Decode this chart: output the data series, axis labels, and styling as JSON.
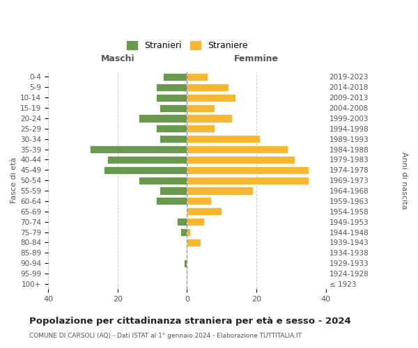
{
  "age_groups": [
    "100+",
    "95-99",
    "90-94",
    "85-89",
    "80-84",
    "75-79",
    "70-74",
    "65-69",
    "60-64",
    "55-59",
    "50-54",
    "45-49",
    "40-44",
    "35-39",
    "30-34",
    "25-29",
    "20-24",
    "15-19",
    "10-14",
    "5-9",
    "0-4"
  ],
  "birth_years": [
    "≤ 1923",
    "1924-1928",
    "1929-1933",
    "1934-1938",
    "1939-1943",
    "1944-1948",
    "1949-1953",
    "1954-1958",
    "1959-1963",
    "1964-1968",
    "1969-1973",
    "1974-1978",
    "1979-1983",
    "1984-1988",
    "1989-1993",
    "1994-1998",
    "1999-2003",
    "2004-2008",
    "2009-2013",
    "2014-2018",
    "2019-2023"
  ],
  "maschi": [
    0,
    0,
    1,
    0,
    0,
    2,
    3,
    0,
    9,
    8,
    14,
    24,
    23,
    28,
    8,
    9,
    14,
    8,
    9,
    9,
    7
  ],
  "femmine": [
    0,
    0,
    0,
    0,
    4,
    1,
    5,
    10,
    7,
    19,
    35,
    35,
    31,
    29,
    21,
    8,
    13,
    8,
    14,
    12,
    6
  ],
  "maschi_color": "#6a994e",
  "femmine_color": "#f7b731",
  "background_color": "#ffffff",
  "grid_color": "#cccccc",
  "title": "Popolazione per cittadinanza straniera per età e sesso - 2024",
  "subtitle": "COMUNE DI CARSOLI (AQ) - Dati ISTAT al 1° gennaio 2024 - Elaborazione TUTTITALIA.IT",
  "xlabel_left": "Maschi",
  "xlabel_right": "Femmine",
  "ylabel_left": "Fasce di età",
  "ylabel_right": "Anni di nascita",
  "legend_stranieri": "Stranieri",
  "legend_straniere": "Straniere",
  "xlim": 40
}
